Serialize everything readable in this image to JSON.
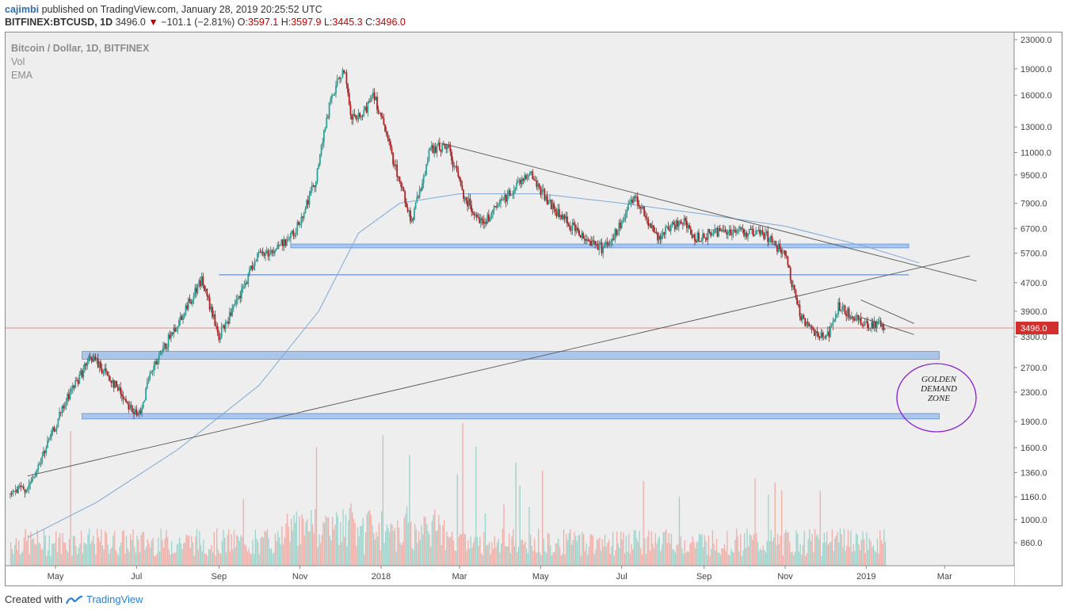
{
  "header": {
    "author": "cajimbi",
    "published_text": "published on TradingView.com, January 28, 2019 20:25:52 UTC",
    "symbol": "BITFINEX:BTCUSD, 1D",
    "last": "3496.0",
    "change": "−101.1 (−2.81%)",
    "o_label": "O:",
    "o_value": "3597.1",
    "h_label": "H:",
    "h_value": "3597.9",
    "l_label": "L:",
    "l_value": "3445.3",
    "c_label": "C:",
    "c_value": "3496.0"
  },
  "legend": {
    "series_title": "Bitcoin / Dollar, 1D, BITFINEX",
    "vol_label": "Vol",
    "ema_label": "EMA"
  },
  "annotation": {
    "zone_text": [
      "GOLDEN",
      "DEMAND",
      "ZONE"
    ]
  },
  "footer": {
    "created_with": "Created with",
    "brand": "TradingView"
  },
  "colors": {
    "up": "#26a69a",
    "down": "#b71c1c",
    "ema": "#7fa8d6",
    "zone": "#a9c4ea",
    "circle": "#8a1fd6"
  },
  "chart_data": {
    "type": "candlestick",
    "title": "Bitcoin / Dollar, 1D, BITFINEX",
    "y_scale": "log",
    "y_ticks": [
      23000,
      19000,
      16000,
      13000,
      11000,
      9500,
      7900,
      6700,
      5700,
      4700,
      3900,
      3300,
      2700,
      2300,
      1900,
      1600,
      1360,
      1160,
      1000,
      860
    ],
    "y_tick_labels": [
      "23000.0",
      "19000.0",
      "16000.0",
      "13000.0",
      "11000.0",
      "9500.0",
      "7900.0",
      "6700.0",
      "5700.0",
      "4700.0",
      "3900.0",
      "3300.0",
      "2700.0",
      "2300.0",
      "1900.0",
      "1600.0",
      "1360.0",
      "1160.0",
      "1000.0",
      "860.0"
    ],
    "x_tick_labels": [
      "May",
      "Jul",
      "Sep",
      "Nov",
      "2018",
      "Mar",
      "May",
      "Jul",
      "Sep",
      "Nov",
      "2019",
      "Mar"
    ],
    "x_tick_dates": [
      "2017-05-01",
      "2017-07-01",
      "2017-09-01",
      "2017-11-01",
      "2018-01-01",
      "2018-03-01",
      "2018-05-01",
      "2018-07-01",
      "2018-09-01",
      "2018-11-01",
      "2019-01-01",
      "2019-03-01"
    ],
    "last_price": 3496.0,
    "last_price_label": "3496.0",
    "close_path": [
      [
        "2017-04-10",
        1180
      ],
      [
        "2017-04-25",
        1250
      ],
      [
        "2017-05-10",
        1700
      ],
      [
        "2017-05-25",
        2300
      ],
      [
        "2017-06-10",
        2900
      ],
      [
        "2017-06-25",
        2500
      ],
      [
        "2017-07-15",
        1950
      ],
      [
        "2017-07-25",
        2600
      ],
      [
        "2017-08-10",
        3400
      ],
      [
        "2017-08-25",
        4300
      ],
      [
        "2017-09-01",
        4800
      ],
      [
        "2017-09-14",
        3300
      ],
      [
        "2017-09-30",
        4300
      ],
      [
        "2017-10-12",
        5600
      ],
      [
        "2017-10-25",
        5800
      ],
      [
        "2017-11-10",
        6500
      ],
      [
        "2017-11-25",
        9000
      ],
      [
        "2017-12-07",
        15500
      ],
      [
        "2017-12-17",
        19200
      ],
      [
        "2017-12-22",
        13800
      ],
      [
        "2017-12-31",
        13800
      ],
      [
        "2018-01-08",
        16500
      ],
      [
        "2018-01-20",
        11500
      ],
      [
        "2018-02-06",
        7000
      ],
      [
        "2018-02-20",
        11200
      ],
      [
        "2018-03-05",
        11500
      ],
      [
        "2018-03-18",
        8200
      ],
      [
        "2018-04-01",
        6900
      ],
      [
        "2018-04-15",
        8000
      ],
      [
        "2018-05-05",
        9700
      ],
      [
        "2018-05-25",
        7500
      ],
      [
        "2018-06-12",
        6500
      ],
      [
        "2018-06-29",
        5900
      ],
      [
        "2018-07-10",
        6500
      ],
      [
        "2018-07-24",
        8300
      ],
      [
        "2018-08-10",
        6300
      ],
      [
        "2018-08-28",
        7100
      ],
      [
        "2018-09-08",
        6300
      ],
      [
        "2018-09-25",
        6600
      ],
      [
        "2018-10-10",
        6600
      ],
      [
        "2018-10-31",
        6400
      ],
      [
        "2018-11-14",
        5600
      ],
      [
        "2018-11-20",
        4500
      ],
      [
        "2018-11-25",
        3800
      ],
      [
        "2018-12-07",
        3400
      ],
      [
        "2018-12-15",
        3250
      ],
      [
        "2018-12-24",
        4000
      ],
      [
        "2019-01-10",
        3650
      ],
      [
        "2019-01-19",
        3600
      ],
      [
        "2019-01-28",
        3496
      ]
    ],
    "ema_path": [
      [
        "2017-04-10",
        890
      ],
      [
        "2017-06-01",
        1120
      ],
      [
        "2017-08-01",
        1580
      ],
      [
        "2017-10-01",
        2400
      ],
      [
        "2017-11-15",
        3900
      ],
      [
        "2017-12-15",
        6500
      ],
      [
        "2018-01-15",
        7900
      ],
      [
        "2018-03-01",
        8400
      ],
      [
        "2018-05-01",
        8400
      ],
      [
        "2018-07-01",
        7900
      ],
      [
        "2018-09-01",
        7350
      ],
      [
        "2018-11-01",
        6800
      ],
      [
        "2019-01-01",
        5950
      ],
      [
        "2019-02-10",
        5350
      ]
    ],
    "horizontal_levels": [
      {
        "type": "zone",
        "low": 5900,
        "high": 6050,
        "from": "2017-10-25",
        "to": "2019-02-02"
      },
      {
        "type": "line",
        "value": 4950,
        "from": "2017-09-01",
        "to": "2019-02-02"
      },
      {
        "type": "zone",
        "low": 2850,
        "high": 3000,
        "from": "2017-05-21",
        "to": "2019-02-25"
      },
      {
        "type": "zone",
        "low": 1930,
        "high": 2000,
        "from": "2017-05-21",
        "to": "2019-02-25"
      }
    ],
    "trendlines": [
      {
        "from": [
          "2018-02-15",
          11700
        ],
        "to": [
          "2019-03-25",
          4750
        ]
      },
      {
        "from": [
          "2017-04-10",
          1330
        ],
        "to": [
          "2019-03-20",
          5600
        ]
      },
      {
        "from": [
          "2018-12-28",
          4200
        ],
        "to": [
          "2019-02-06",
          3600
        ]
      },
      {
        "from": [
          "2018-12-28",
          3750
        ],
        "to": [
          "2019-02-06",
          3350
        ]
      }
    ],
    "volume_scale": "relative"
  }
}
